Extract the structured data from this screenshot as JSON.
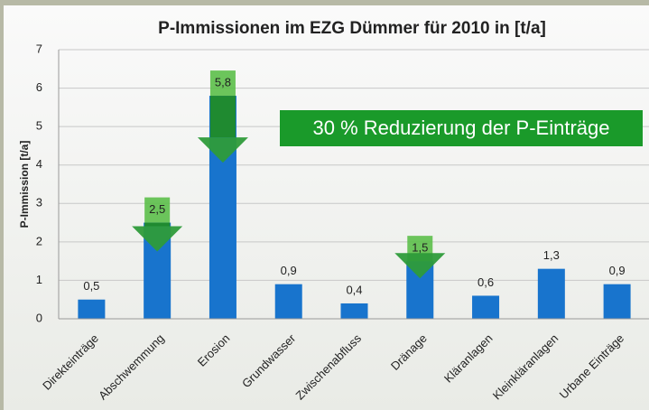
{
  "chart_data": {
    "type": "bar",
    "title": "P-Immissionen im EZG Dümmer für 2010 in [t/a]",
    "y_label": "P-Immission [t/a]",
    "annotation": "30 % Reduzierung der P-Einträge",
    "categories": [
      "Direkteinträge",
      "Abschwemmung",
      "Erosion",
      "Grundwasser",
      "Zwischenabfluss",
      "Dränage",
      "Kläranlagen",
      "Kleinkläranlagen",
      "Urbane Einträge"
    ],
    "values": [
      0.5,
      2.5,
      5.8,
      0.9,
      0.4,
      1.5,
      0.6,
      1.3,
      0.9
    ],
    "value_labels": [
      "0,5",
      "2,5",
      "5,8",
      "0,9",
      "0,4",
      "1,5",
      "0,6",
      "1,3",
      "0,9"
    ],
    "color": "#1874cd",
    "ylim": [
      0,
      7
    ],
    "yticks": [
      0,
      1,
      2,
      3,
      4,
      5,
      6,
      7
    ],
    "grid": true
  }
}
